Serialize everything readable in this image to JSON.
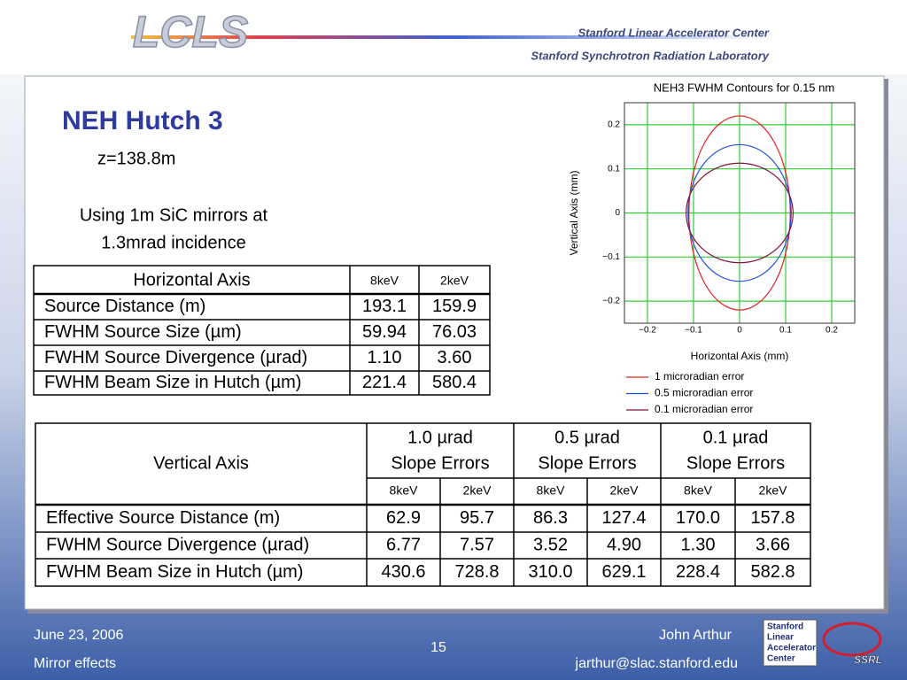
{
  "header": {
    "logo": "LCLS",
    "org1": "Stanford Linear Accelerator Center",
    "org2": "Stanford Synchrotron Radiation Laboratory"
  },
  "slide": {
    "title": "NEH Hutch 3",
    "z": "z=138.8m",
    "note": [
      "Using 1m SiC mirrors at",
      "1.3mrad incidence"
    ]
  },
  "table1": {
    "header": [
      "Horizontal Axis",
      "8keV",
      "2keV"
    ],
    "rows": [
      [
        "Source Distance (m)",
        "193.1",
        "159.9"
      ],
      [
        "FWHM Source Size (µm)",
        "59.94",
        "76.03"
      ],
      [
        "FWHM Source Divergence (µrad)",
        "1.10",
        "3.60"
      ],
      [
        "FWHM Beam Size in Hutch (µm)",
        "221.4",
        "580.4"
      ]
    ]
  },
  "table2": {
    "corner": "Vertical Axis",
    "groups": [
      [
        "1.0 µrad",
        "Slope Errors"
      ],
      [
        "0.5 µrad",
        "Slope Errors"
      ],
      [
        "0.1 µrad",
        "Slope Errors"
      ]
    ],
    "subheaders": [
      "8keV",
      "2keV",
      "8keV",
      "2keV",
      "8keV",
      "2keV"
    ],
    "rows": [
      [
        "Effective Source Distance (m)",
        "62.9",
        "95.7",
        "86.3",
        "127.4",
        "170.0",
        "157.8"
      ],
      [
        "FWHM Source Divergence (µrad)",
        "6.77",
        "7.57",
        "3.52",
        "4.90",
        "1.30",
        "3.66"
      ],
      [
        "FWHM Beam Size in Hutch (µm)",
        "430.6",
        "728.8",
        "310.0",
        "629.1",
        "228.4",
        "582.8"
      ]
    ]
  },
  "chart_data": {
    "type": "contour",
    "title": "NEH3 FWHM Contours for 0.15 nm",
    "x_label": "Horizontal Axis (mm)",
    "y_label": "Vertical Axis (mm)",
    "xlim": [
      -0.25,
      0.25
    ],
    "ylim": [
      -0.25,
      0.25
    ],
    "xticks": [
      {
        "value": -0.2,
        "label": "−0.2"
      },
      {
        "value": -0.1,
        "label": "−0.1"
      },
      0,
      0.1,
      0.2
    ],
    "yticks": [
      {
        "value": -0.2,
        "label": "−0.2"
      },
      {
        "value": -0.1,
        "label": "−0.1"
      },
      0,
      0.1,
      0.2
    ],
    "grid": true,
    "grid_color": "#33cc33",
    "series": [
      {
        "name": "1 microradian error",
        "color": "#e02020",
        "rx": 0.11,
        "ry": 0.22
      },
      {
        "name": "0.5 microradian error",
        "color": "#2050e0",
        "rx": 0.112,
        "ry": 0.155
      },
      {
        "name": "0.1 microradian error",
        "color": "#801040",
        "rx": 0.116,
        "ry": 0.113
      }
    ]
  },
  "footer": {
    "date": "June 23, 2006",
    "topic": "Mirror effects",
    "page": "15",
    "author": "John Arthur",
    "email": "jarthur@slac.stanford.edu",
    "logo": [
      "Stanford",
      "Linear",
      "Accelerator",
      "Center"
    ],
    "ssrl": "SSRL"
  }
}
